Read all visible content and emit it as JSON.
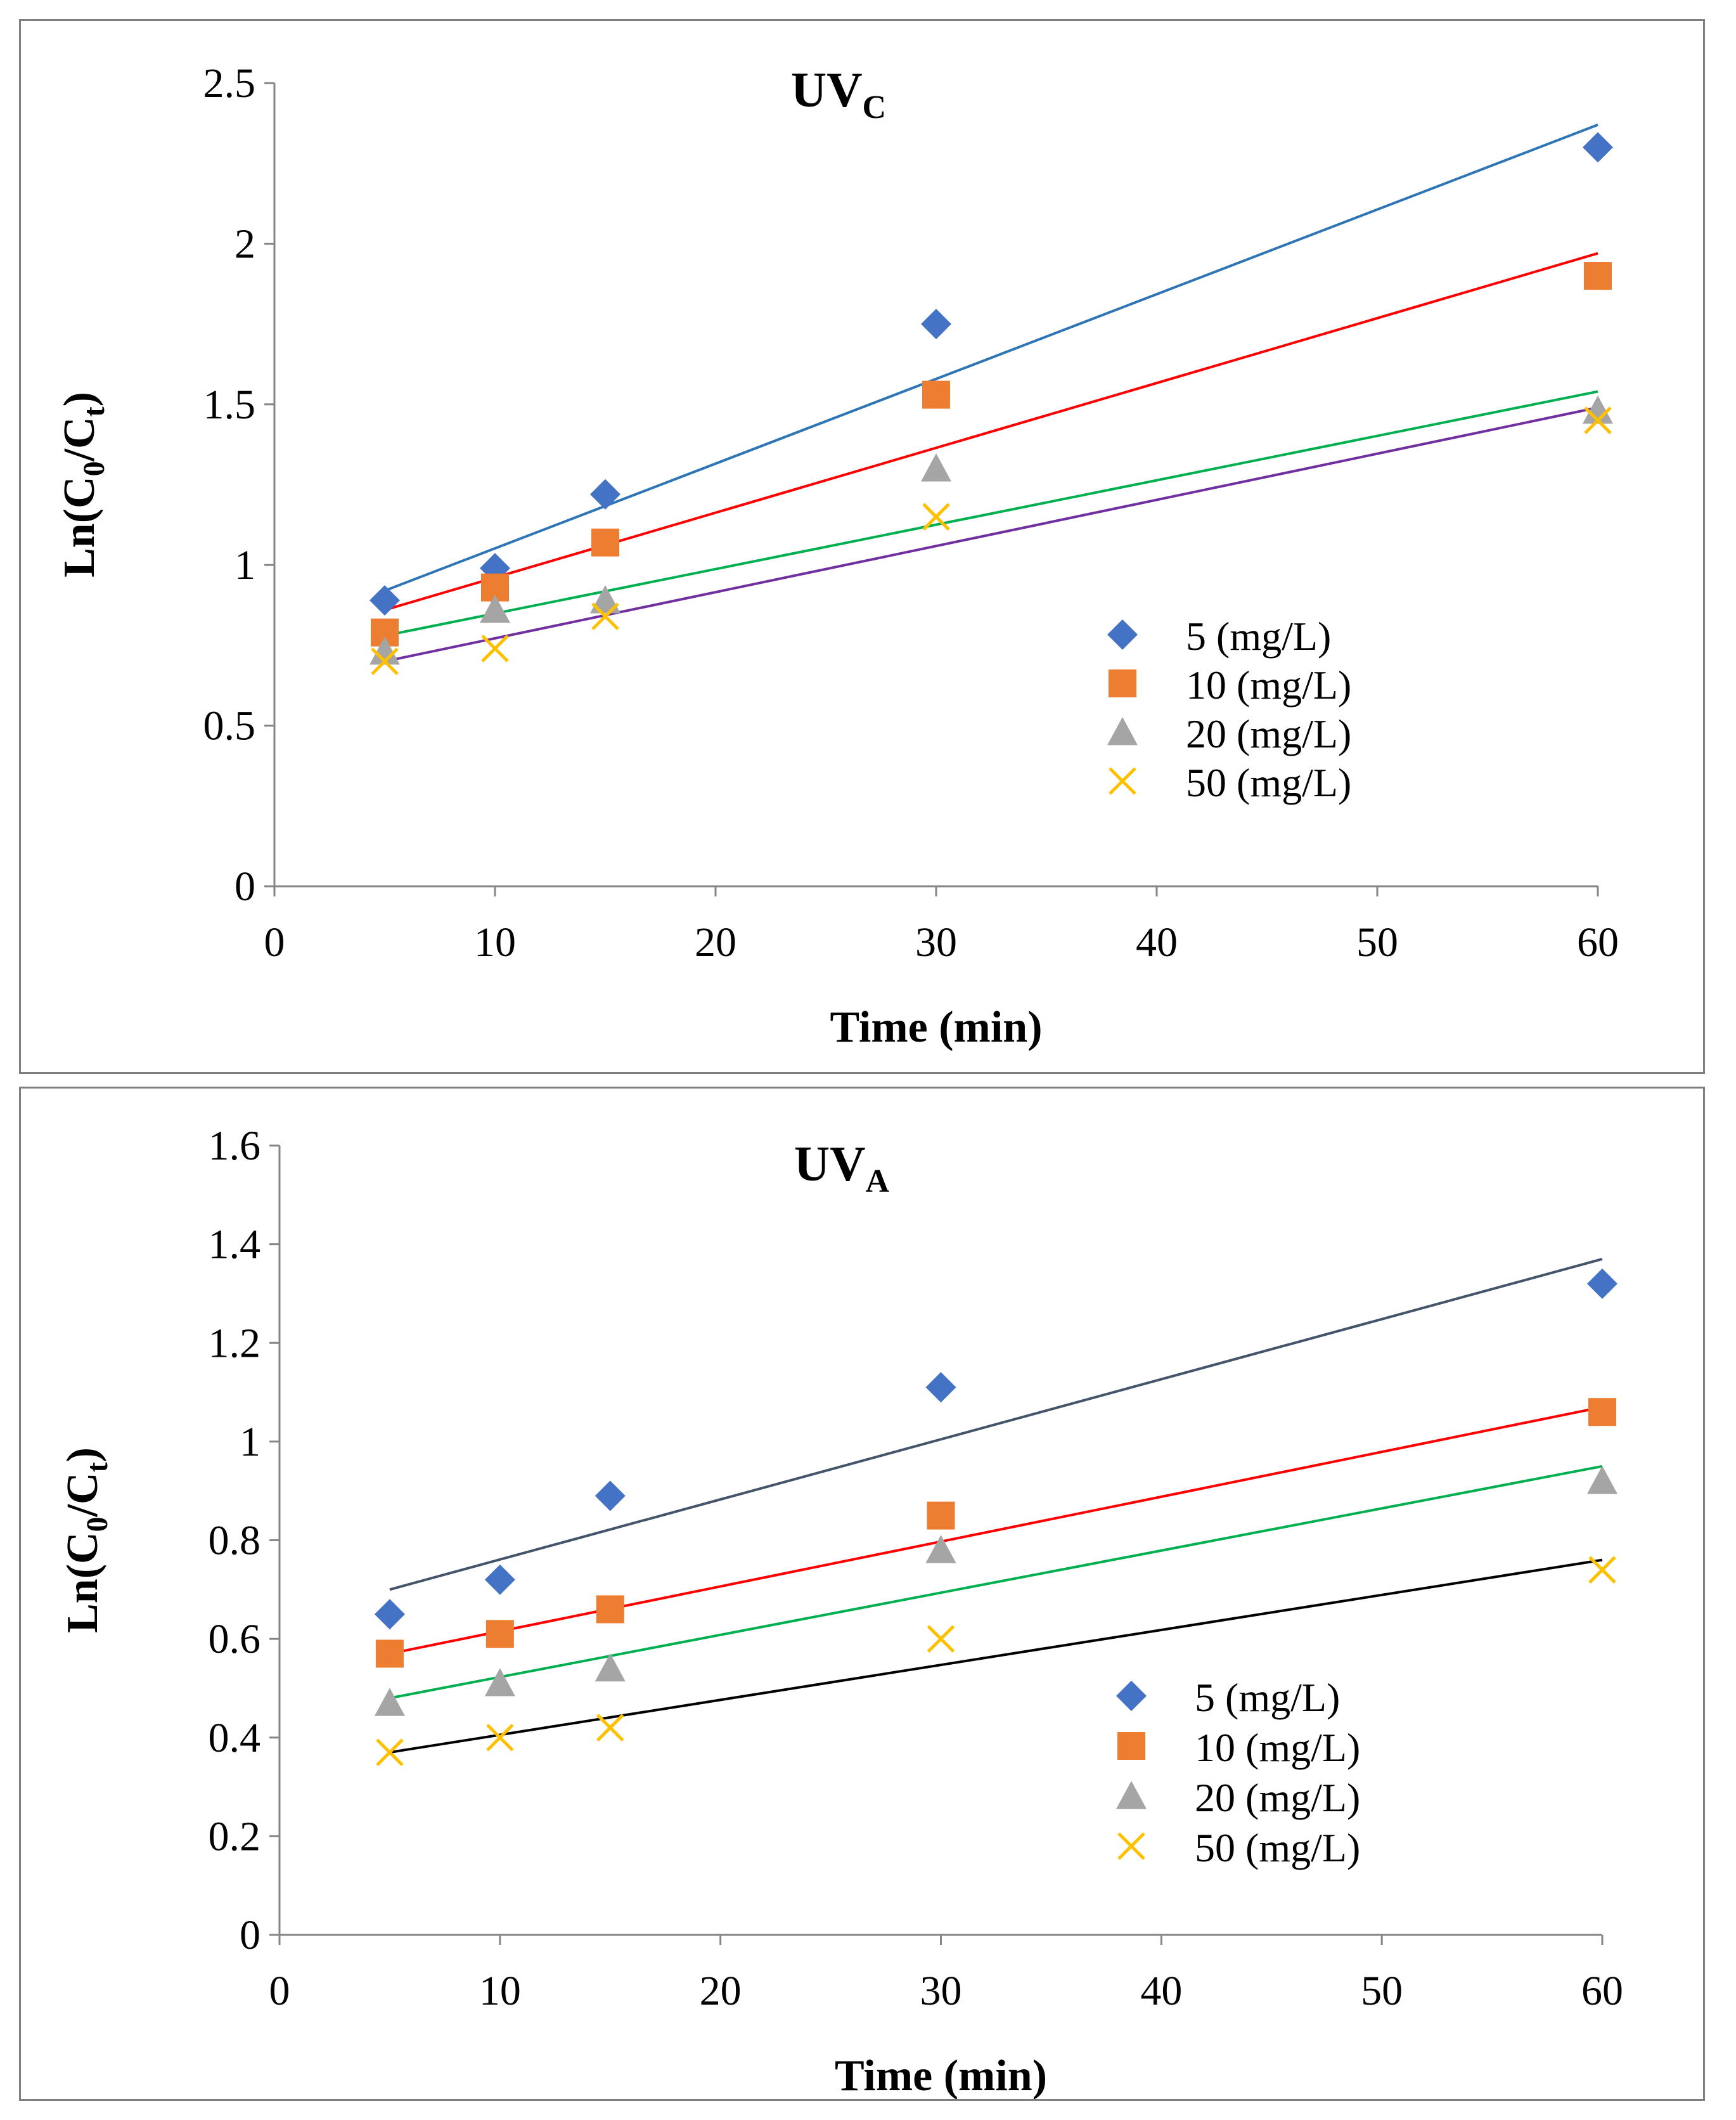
{
  "chart_data": [
    {
      "type": "scatter",
      "title": "UV",
      "title_sub": "C",
      "xlabel": "Time (min)",
      "ylabel": "Ln(C",
      "ylabel_sub0": "0",
      "ylabel_mid": "/C",
      "ylabel_sub1": "t",
      "ylabel_end": ")",
      "xlim": [
        0,
        60
      ],
      "ylim": [
        0,
        2.5
      ],
      "xticks": [
        "0",
        "10",
        "20",
        "30",
        "40",
        "50",
        "60"
      ],
      "yticks": [
        "0",
        "0.5",
        "1",
        "1.5",
        "2",
        "2.5"
      ],
      "grid": false,
      "legend": "right",
      "x": [
        5,
        10,
        15,
        30,
        60
      ],
      "series": [
        {
          "name": "5 (mg/L)",
          "marker": "diamond",
          "color": "#4472c4",
          "line_color": "#2e75b6",
          "values": [
            0.89,
            0.99,
            1.22,
            1.75,
            2.3
          ],
          "trend": [
            0.92,
            2.37
          ]
        },
        {
          "name": "10 (mg/L)",
          "marker": "square",
          "color": "#ed7d31",
          "line_color": "#ff0000",
          "values": [
            0.79,
            0.93,
            1.07,
            1.53,
            1.9
          ],
          "trend": [
            0.86,
            1.97
          ]
        },
        {
          "name": "20 (mg/L)",
          "marker": "triangle",
          "color": "#a5a5a5",
          "line_color": "#00b050",
          "values": [
            0.73,
            0.86,
            0.89,
            1.3,
            1.48
          ],
          "trend": [
            0.78,
            1.54
          ]
        },
        {
          "name": "50 (mg/L)",
          "marker": "x",
          "color": "#ffc000",
          "line_color": "#7030a0",
          "values": [
            0.7,
            0.74,
            0.84,
            1.15,
            1.45
          ],
          "trend": [
            0.7,
            1.49
          ]
        }
      ]
    },
    {
      "type": "scatter",
      "title": "UV",
      "title_sub": "A",
      "xlabel": "Time (min)",
      "ylabel": "Ln(C",
      "ylabel_sub0": "0",
      "ylabel_mid": "/C",
      "ylabel_sub1": "t",
      "ylabel_end": ")",
      "xlim": [
        0,
        60
      ],
      "ylim": [
        0,
        1.6
      ],
      "xticks": [
        "0",
        "10",
        "20",
        "30",
        "40",
        "50",
        "60"
      ],
      "yticks": [
        "0",
        "0.2",
        "0.4",
        "0.6",
        "0.8",
        "1",
        "1.2",
        "1.4",
        "1.6"
      ],
      "grid": false,
      "legend": "bottom-right",
      "x": [
        5,
        10,
        15,
        30,
        60
      ],
      "series": [
        {
          "name": "5 (mg/L)",
          "marker": "diamond",
          "color": "#4472c4",
          "line_color": "#44546a",
          "values": [
            0.65,
            0.72,
            0.89,
            1.11,
            1.32
          ],
          "trend": [
            0.7,
            1.37
          ]
        },
        {
          "name": "10 (mg/L)",
          "marker": "square",
          "color": "#ed7d31",
          "line_color": "#ff0000",
          "values": [
            0.57,
            0.61,
            0.66,
            0.85,
            1.06
          ],
          "trend": [
            0.57,
            1.07
          ]
        },
        {
          "name": "20 (mg/L)",
          "marker": "triangle",
          "color": "#a5a5a5",
          "line_color": "#00b050",
          "values": [
            0.47,
            0.51,
            0.54,
            0.78,
            0.92
          ],
          "trend": [
            0.48,
            0.95
          ]
        },
        {
          "name": "50 (mg/L)",
          "marker": "x",
          "color": "#ffc000",
          "line_color": "#000000",
          "values": [
            0.37,
            0.4,
            0.42,
            0.6,
            0.74
          ],
          "trend": [
            0.37,
            0.76
          ]
        }
      ]
    }
  ]
}
